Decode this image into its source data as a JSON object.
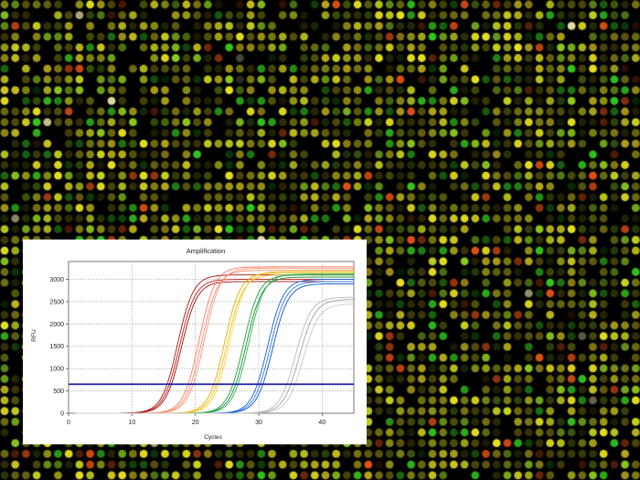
{
  "background": {
    "name": "microarray-spots",
    "colors": [
      "#e8e020",
      "#c8d41c",
      "#8cc81e",
      "#33c61e",
      "#e05014",
      "#b8a818",
      "#f4f0b0"
    ]
  },
  "chart_data": {
    "type": "line",
    "title": "Amplification",
    "xlabel": "Cycles",
    "ylabel": "RFU",
    "xlim": [
      0,
      45
    ],
    "ylim": [
      0,
      3400
    ],
    "xticks": [
      0,
      10,
      20,
      30,
      40
    ],
    "yticks": [
      0,
      500,
      1000,
      1500,
      2000,
      2500,
      3000
    ],
    "grid": true,
    "threshold": {
      "value": 650,
      "color": "#2020a8"
    },
    "series": [
      {
        "color": "#b01010",
        "plateau": 3100,
        "midpoint": 17.2
      },
      {
        "color": "#c01818",
        "plateau": 3000,
        "midpoint": 17.5
      },
      {
        "color": "#a00c0c",
        "plateau": 2950,
        "midpoint": 17.8
      },
      {
        "color": "#ff7a5a",
        "plateau": 3280,
        "midpoint": 20.6
      },
      {
        "color": "#f08a6a",
        "plateau": 3200,
        "midpoint": 21.0
      },
      {
        "color": "#ff9070",
        "plateau": 3250,
        "midpoint": 21.4
      },
      {
        "color": "#e0b000",
        "plateau": 3150,
        "midpoint": 24.6
      },
      {
        "color": "#f0c020",
        "plateau": 3100,
        "midpoint": 25.0
      },
      {
        "color": "#ffd030",
        "plateau": 3180,
        "midpoint": 25.4
      },
      {
        "color": "#20a040",
        "plateau": 3100,
        "midpoint": 27.6
      },
      {
        "color": "#109030",
        "plateau": 3050,
        "midpoint": 28.0
      },
      {
        "color": "#30b050",
        "plateau": 3120,
        "midpoint": 28.4
      },
      {
        "color": "#1060e0",
        "plateau": 3000,
        "midpoint": 31.4
      },
      {
        "color": "#2a7af0",
        "plateau": 2950,
        "midpoint": 31.8
      },
      {
        "color": "#0a50c8",
        "plateau": 2900,
        "midpoint": 32.2
      },
      {
        "color": "#b8b8b8",
        "plateau": 2600,
        "midpoint": 35.8
      },
      {
        "color": "#a0a0a0",
        "plateau": 2550,
        "midpoint": 36.4
      },
      {
        "color": "#c8c8c8",
        "plateau": 2450,
        "midpoint": 37.0
      }
    ]
  }
}
